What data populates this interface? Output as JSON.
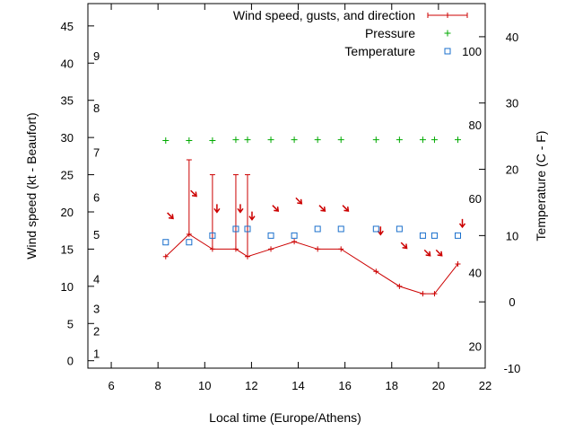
{
  "chart_data": {
    "type": "line",
    "xlabel": "Local time (Europe/Athens)",
    "ylabel": "Wind speed (kt - Beaufort)",
    "y2label": "Temperature (C - F)",
    "xlim": [
      5,
      22
    ],
    "ylim": [
      -1,
      48
    ],
    "y2lim": [
      -10,
      45
    ],
    "x_ticks": [
      6,
      8,
      10,
      12,
      14,
      16,
      18,
      20,
      22
    ],
    "y_ticks": [
      0,
      5,
      10,
      15,
      20,
      25,
      30,
      35,
      40,
      45
    ],
    "y2_ticks": [
      -10,
      0,
      10,
      20,
      30,
      40
    ],
    "beaufort_labels": [
      {
        "text": "1",
        "kt": 1
      },
      {
        "text": "2",
        "kt": 4
      },
      {
        "text": "3",
        "kt": 7
      },
      {
        "text": "4",
        "kt": 11
      },
      {
        "text": "5",
        "kt": 17
      },
      {
        "text": "6",
        "kt": 22
      },
      {
        "text": "7",
        "kt": 28
      },
      {
        "text": "8",
        "kt": 34
      },
      {
        "text": "9",
        "kt": 41
      }
    ],
    "fahrenheit_labels": [
      {
        "text": "20",
        "c": -6.7
      },
      {
        "text": "40",
        "c": 4.4
      },
      {
        "text": "60",
        "c": 15.6
      },
      {
        "text": "80",
        "c": 26.7
      },
      {
        "text": "100",
        "c": 37.8
      }
    ],
    "legend_position": "top-right",
    "series": [
      {
        "name": "Wind speed, gusts, and direction",
        "color": "#cc0000",
        "x": [
          8.33,
          9.33,
          10.33,
          11.33,
          11.83,
          12.83,
          13.83,
          14.83,
          15.83,
          17.33,
          18.33,
          19.33,
          19.83,
          20.83
        ],
        "values": [
          14,
          17,
          15,
          15,
          14,
          15,
          16,
          15,
          15,
          12,
          10,
          9,
          9,
          13
        ],
        "gusts": [
          null,
          27,
          25,
          25,
          25,
          null,
          null,
          null,
          null,
          null,
          null,
          null,
          null,
          null
        ],
        "direction_deg": [
          315,
          315,
          0,
          0,
          0,
          315,
          315,
          315,
          315,
          0,
          315,
          315,
          315,
          0
        ]
      },
      {
        "name": "Pressure",
        "color": "#00aa00",
        "x": [
          8.33,
          9.33,
          10.33,
          11.33,
          11.83,
          12.83,
          13.83,
          14.83,
          15.83,
          17.33,
          18.33,
          19.33,
          19.83,
          20.83
        ],
        "values": [
          29.6,
          29.6,
          29.6,
          29.7,
          29.7,
          29.7,
          29.7,
          29.7,
          29.7,
          29.7,
          29.7,
          29.7,
          29.7,
          29.7
        ]
      },
      {
        "name": "Temperature",
        "color": "#1a6fcc",
        "x": [
          8.33,
          9.33,
          10.33,
          11.33,
          11.83,
          12.83,
          13.83,
          14.83,
          15.83,
          17.33,
          18.33,
          19.33,
          19.83,
          20.83
        ],
        "values": [
          9,
          9,
          10,
          11,
          11,
          10,
          10,
          11,
          11,
          11,
          11,
          10,
          10,
          10
        ]
      }
    ]
  }
}
